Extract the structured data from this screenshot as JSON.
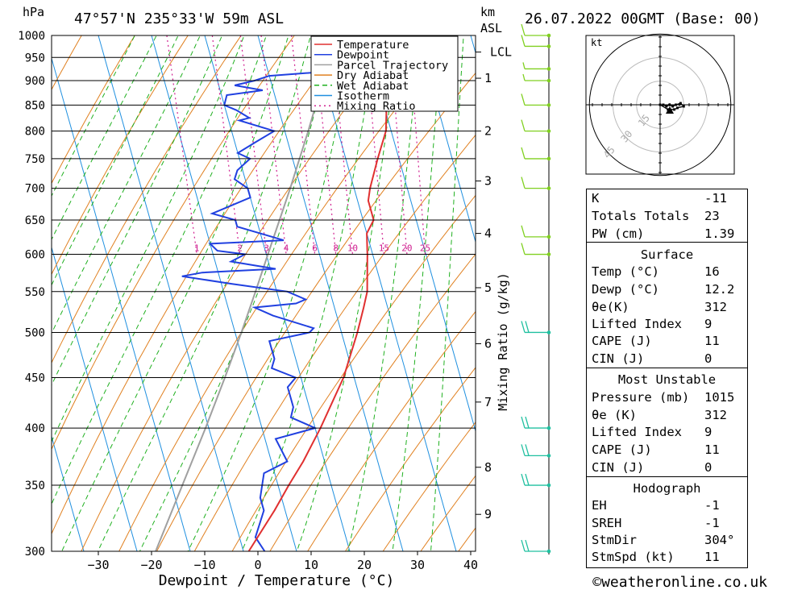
{
  "header": {
    "pressure_unit": "hPa",
    "location": "47°57'N  235°33'W  59m  ASL",
    "km_unit": "km",
    "km_unit2": "ASL",
    "datetime": "26.07.2022  00GMT  (Base: 00)"
  },
  "chart_data": {
    "type": "line",
    "title": "",
    "xlabel": "Dewpoint / Temperature (°C)",
    "ylabel": "hPa",
    "right_axis_label": "Mixing Ratio (g/kg)",
    "xlim": [
      -40,
      40
    ],
    "ylim": [
      1000,
      300
    ],
    "pressure_ticks": [
      300,
      350,
      400,
      450,
      500,
      550,
      600,
      650,
      700,
      750,
      800,
      850,
      900,
      950,
      1000
    ],
    "temperature_ticks": [
      -30,
      -20,
      -10,
      0,
      10,
      20,
      30,
      40
    ],
    "altitude_ticks_km": [
      {
        "label": "9",
        "p": 327
      },
      {
        "label": "8",
        "p": 365
      },
      {
        "label": "7",
        "p": 425
      },
      {
        "label": "6",
        "p": 487
      },
      {
        "label": "5",
        "p": 555
      },
      {
        "label": "4",
        "p": 630
      },
      {
        "label": "3",
        "p": 712
      },
      {
        "label": "2",
        "p": 800
      },
      {
        "label": "1",
        "p": 905
      },
      {
        "label": "LCL",
        "p": 962
      }
    ],
    "mixing_ratio_labels": [
      "1",
      "2",
      "3",
      "4",
      "6",
      "8",
      "10",
      "15",
      "20",
      "25"
    ],
    "mixing_ratio_values": [
      1,
      2,
      3,
      4,
      6,
      8,
      10,
      15,
      20,
      25
    ],
    "legend": [
      {
        "name": "Temperature",
        "color": "#e03030",
        "dash": ""
      },
      {
        "name": "Dewpoint",
        "color": "#2040e0",
        "dash": ""
      },
      {
        "name": "Parcel Trajectory",
        "color": "#a0a0a0",
        "dash": ""
      },
      {
        "name": "Dry Adiabat",
        "color": "#e08020",
        "dash": ""
      },
      {
        "name": "Wet Adiabat",
        "color": "#20b020",
        "dash": "6,4"
      },
      {
        "name": "Isotherm",
        "color": "#2090e0",
        "dash": ""
      },
      {
        "name": "Mixing Ratio",
        "color": "#d02090",
        "dash": "2,4"
      }
    ],
    "series": [
      {
        "name": "Temperature",
        "points": [
          [
            1000,
            16
          ],
          [
            980,
            14
          ],
          [
            950,
            13
          ],
          [
            930,
            14.5
          ],
          [
            910,
            17
          ],
          [
            900,
            18
          ],
          [
            880,
            19.5
          ],
          [
            860,
            20.3
          ],
          [
            850,
            20.5
          ],
          [
            800,
            19
          ],
          [
            750,
            16
          ],
          [
            700,
            13
          ],
          [
            680,
            12
          ],
          [
            650,
            12
          ],
          [
            630,
            10
          ],
          [
            600,
            9
          ],
          [
            550,
            7
          ],
          [
            530,
            5.5
          ],
          [
            500,
            3
          ],
          [
            450,
            -2
          ],
          [
            400,
            -9
          ],
          [
            370,
            -14
          ],
          [
            350,
            -18
          ],
          [
            330,
            -22
          ],
          [
            300,
            -29
          ]
        ]
      },
      {
        "name": "Dewpoint",
        "points": [
          [
            1000,
            12.2
          ],
          [
            970,
            11.5
          ],
          [
            940,
            12
          ],
          [
            920,
            12
          ],
          [
            910,
            0
          ],
          [
            900,
            -3
          ],
          [
            890,
            -7
          ],
          [
            880,
            -2
          ],
          [
            870,
            -9
          ],
          [
            850,
            -10
          ],
          [
            840,
            -8
          ],
          [
            825,
            -6
          ],
          [
            820,
            -8
          ],
          [
            800,
            -2
          ],
          [
            780,
            -6
          ],
          [
            760,
            -10
          ],
          [
            750,
            -8
          ],
          [
            730,
            -11
          ],
          [
            715,
            -12
          ],
          [
            700,
            -10
          ],
          [
            685,
            -10
          ],
          [
            660,
            -18
          ],
          [
            650,
            -14
          ],
          [
            640,
            -14
          ],
          [
            620,
            -6
          ],
          [
            615,
            -20
          ],
          [
            605,
            -19
          ],
          [
            600,
            -14
          ],
          [
            590,
            -17
          ],
          [
            580,
            -9
          ],
          [
            575,
            -23
          ],
          [
            570,
            -27
          ],
          [
            560,
            -18
          ],
          [
            550,
            -8
          ],
          [
            540,
            -5
          ],
          [
            535,
            -7
          ],
          [
            530,
            -15
          ],
          [
            520,
            -12
          ],
          [
            505,
            -5
          ],
          [
            500,
            -6
          ],
          [
            490,
            -14
          ],
          [
            470,
            -14
          ],
          [
            460,
            -15
          ],
          [
            450,
            -11
          ],
          [
            440,
            -13
          ],
          [
            430,
            -13
          ],
          [
            420,
            -13
          ],
          [
            410,
            -14
          ],
          [
            400,
            -10
          ],
          [
            390,
            -18
          ],
          [
            370,
            -17
          ],
          [
            360,
            -22
          ],
          [
            340,
            -24
          ],
          [
            330,
            -24
          ],
          [
            310,
            -27
          ],
          [
            300,
            -26
          ]
        ]
      },
      {
        "name": "Parcel Trajectory",
        "points": [
          [
            1000,
            16
          ],
          [
            962,
            12.6
          ],
          [
            900,
            9.8
          ],
          [
            850,
            7.2
          ],
          [
            800,
            4.4
          ],
          [
            750,
            1.3
          ],
          [
            700,
            -2
          ],
          [
            650,
            -5.7
          ],
          [
            600,
            -9.7
          ],
          [
            550,
            -14
          ],
          [
            500,
            -18.8
          ],
          [
            450,
            -24.3
          ],
          [
            400,
            -30.6
          ],
          [
            350,
            -38
          ],
          [
            300,
            -46.5
          ]
        ]
      }
    ],
    "wind_barbs_kt": [
      {
        "p": 1000,
        "spd": 11,
        "dir": 304
      },
      {
        "p": 975,
        "spd": 8,
        "dir": 300
      },
      {
        "p": 925,
        "spd": 5,
        "dir": 290
      },
      {
        "p": 900,
        "spd": 6,
        "dir": 280
      },
      {
        "p": 850,
        "spd": 8,
        "dir": 285
      },
      {
        "p": 800,
        "spd": 8,
        "dir": 290
      },
      {
        "p": 750,
        "spd": 10,
        "dir": 290
      },
      {
        "p": 700,
        "spd": 10,
        "dir": 285
      },
      {
        "p": 625,
        "spd": 10,
        "dir": 290
      },
      {
        "p": 600,
        "spd": 12,
        "dir": 290
      },
      {
        "p": 500,
        "spd": 20,
        "dir": 270
      },
      {
        "p": 400,
        "spd": 20,
        "dir": 265
      },
      {
        "p": 375,
        "spd": 20,
        "dir": 265
      },
      {
        "p": 350,
        "spd": 20,
        "dir": 268
      },
      {
        "p": 300,
        "spd": 20,
        "dir": 268
      }
    ]
  },
  "hodograph": {
    "unit": "kt",
    "ring_labels": [
      "15",
      "30",
      "45"
    ],
    "trace_kt": [
      [
        2,
        0
      ],
      [
        4,
        -1
      ],
      [
        6,
        0
      ],
      [
        8,
        -1
      ],
      [
        10,
        0
      ],
      [
        13,
        1
      ],
      [
        15,
        -1
      ],
      [
        11,
        -2
      ],
      [
        9,
        -3
      ],
      [
        5,
        -3
      ],
      [
        0,
        0
      ]
    ]
  },
  "indices": {
    "top": [
      {
        "k": "K",
        "v": "-11"
      },
      {
        "k": "Totals Totals",
        "v": "23"
      },
      {
        "k": "PW (cm)",
        "v": "1.39"
      }
    ],
    "surface_title": "Surface",
    "surface": [
      {
        "k": "Temp (°C)",
        "v": "16"
      },
      {
        "k": "Dewp (°C)",
        "v": "12.2"
      },
      {
        "k": "θe(K)",
        "v": "312"
      },
      {
        "k": "Lifted Index",
        "v": "9"
      },
      {
        "k": "CAPE (J)",
        "v": "11"
      },
      {
        "k": "CIN (J)",
        "v": "0"
      }
    ],
    "unstable_title": "Most Unstable",
    "unstable": [
      {
        "k": "Pressure (mb)",
        "v": "1015"
      },
      {
        "k": "θe (K)",
        "v": "312"
      },
      {
        "k": "Lifted Index",
        "v": "9"
      },
      {
        "k": "CAPE (J)",
        "v": "11"
      },
      {
        "k": "CIN (J)",
        "v": "0"
      }
    ],
    "hodo_title": "Hodograph",
    "hodo": [
      {
        "k": "EH",
        "v": "-1"
      },
      {
        "k": "SREH",
        "v": "-1"
      },
      {
        "k": "StmDir",
        "v": "304°"
      },
      {
        "k": "StmSpd (kt)",
        "v": "11"
      }
    ]
  },
  "footer": {
    "credit": "©weatheronline.co.uk"
  }
}
